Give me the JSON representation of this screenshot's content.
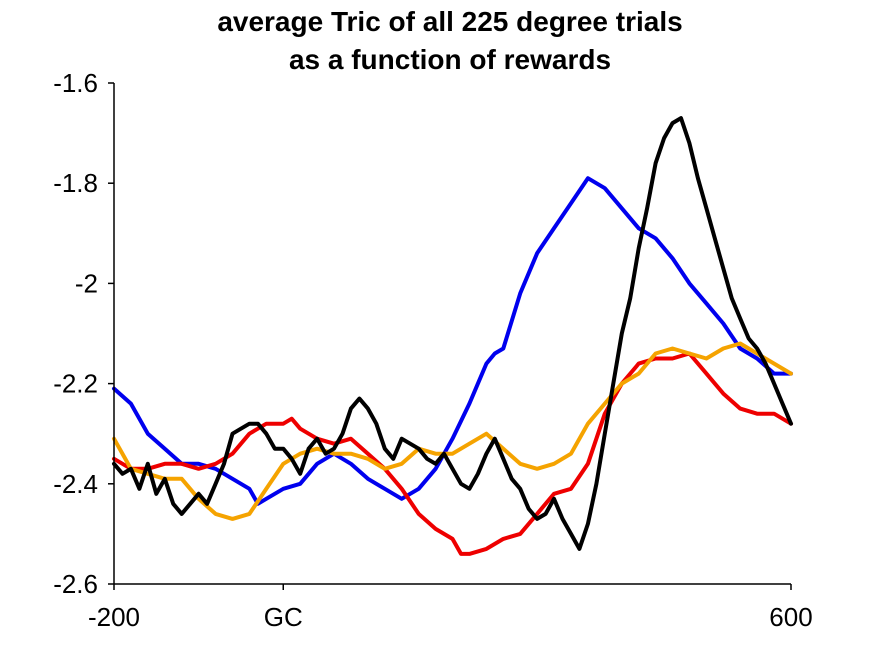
{
  "chart_data": {
    "type": "line",
    "title_lines": [
      "average Tric of all 225 degree trials",
      "as a function of rewards"
    ],
    "xlim": [
      -200,
      600
    ],
    "ylim": [
      -2.6,
      -1.6
    ],
    "x_ticks": [
      {
        "value": -200,
        "label": "-200"
      },
      {
        "value": 0,
        "label": "GC"
      },
      {
        "value": 600,
        "label": "600"
      }
    ],
    "y_ticks": [
      {
        "value": -1.6,
        "label": "-1.6"
      },
      {
        "value": -1.8,
        "label": "-1.8"
      },
      {
        "value": -2.0,
        "label": "-2"
      },
      {
        "value": -2.2,
        "label": "-2.2"
      },
      {
        "value": -2.4,
        "label": "-2.4"
      },
      {
        "value": -2.6,
        "label": "-2.6"
      }
    ],
    "grid": false,
    "series": [
      {
        "color": "#0000ee",
        "x": [
          -200,
          -180,
          -160,
          -140,
          -120,
          -100,
          -80,
          -60,
          -40,
          -30,
          -20,
          -10,
          0,
          20,
          40,
          60,
          80,
          100,
          120,
          140,
          150,
          160,
          180,
          200,
          220,
          240,
          250,
          260,
          280,
          300,
          320,
          340,
          360,
          380,
          400,
          420,
          440,
          460,
          480,
          500,
          520,
          540,
          560,
          580,
          600
        ],
        "y": [
          -2.21,
          -2.24,
          -2.3,
          -2.33,
          -2.36,
          -2.36,
          -2.37,
          -2.39,
          -2.41,
          -2.44,
          -2.43,
          -2.42,
          -2.41,
          -2.4,
          -2.36,
          -2.34,
          -2.36,
          -2.39,
          -2.41,
          -2.43,
          -2.42,
          -2.41,
          -2.37,
          -2.31,
          -2.24,
          -2.16,
          -2.14,
          -2.13,
          -2.02,
          -1.94,
          -1.89,
          -1.84,
          -1.79,
          -1.81,
          -1.85,
          -1.89,
          -1.91,
          -1.95,
          -2.0,
          -2.04,
          -2.08,
          -2.13,
          -2.15,
          -2.18,
          -2.18
        ]
      },
      {
        "color": "#ee0000",
        "x": [
          -200,
          -180,
          -160,
          -140,
          -120,
          -100,
          -80,
          -60,
          -40,
          -20,
          0,
          10,
          20,
          40,
          60,
          80,
          100,
          120,
          140,
          160,
          180,
          200,
          210,
          220,
          240,
          260,
          280,
          300,
          320,
          340,
          360,
          380,
          400,
          420,
          440,
          460,
          480,
          500,
          520,
          540,
          560,
          580,
          600
        ],
        "y": [
          -2.35,
          -2.37,
          -2.37,
          -2.36,
          -2.36,
          -2.37,
          -2.36,
          -2.34,
          -2.3,
          -2.28,
          -2.28,
          -2.27,
          -2.29,
          -2.31,
          -2.32,
          -2.31,
          -2.34,
          -2.37,
          -2.41,
          -2.46,
          -2.49,
          -2.51,
          -2.54,
          -2.54,
          -2.53,
          -2.51,
          -2.5,
          -2.46,
          -2.42,
          -2.41,
          -2.36,
          -2.26,
          -2.2,
          -2.16,
          -2.15,
          -2.15,
          -2.14,
          -2.18,
          -2.22,
          -2.25,
          -2.26,
          -2.26,
          -2.28
        ]
      },
      {
        "color": "#f5a300",
        "x": [
          -200,
          -180,
          -160,
          -140,
          -120,
          -100,
          -80,
          -60,
          -40,
          -20,
          0,
          20,
          40,
          60,
          80,
          100,
          120,
          140,
          160,
          180,
          200,
          220,
          240,
          260,
          280,
          300,
          320,
          340,
          360,
          380,
          400,
          420,
          440,
          460,
          480,
          500,
          520,
          540,
          560,
          580,
          600
        ],
        "y": [
          -2.31,
          -2.37,
          -2.38,
          -2.39,
          -2.39,
          -2.43,
          -2.46,
          -2.47,
          -2.46,
          -2.41,
          -2.36,
          -2.34,
          -2.33,
          -2.34,
          -2.34,
          -2.35,
          -2.37,
          -2.36,
          -2.33,
          -2.34,
          -2.34,
          -2.32,
          -2.3,
          -2.33,
          -2.36,
          -2.37,
          -2.36,
          -2.34,
          -2.28,
          -2.24,
          -2.2,
          -2.18,
          -2.14,
          -2.13,
          -2.14,
          -2.15,
          -2.13,
          -2.12,
          -2.14,
          -2.16,
          -2.18
        ]
      },
      {
        "color": "#000000",
        "x": [
          -200,
          -190,
          -180,
          -170,
          -160,
          -150,
          -140,
          -130,
          -120,
          -110,
          -100,
          -90,
          -80,
          -70,
          -60,
          -50,
          -40,
          -30,
          -20,
          -10,
          0,
          10,
          20,
          30,
          40,
          50,
          60,
          70,
          80,
          90,
          100,
          110,
          120,
          130,
          140,
          150,
          160,
          170,
          180,
          190,
          200,
          210,
          220,
          230,
          240,
          250,
          260,
          270,
          280,
          290,
          300,
          310,
          320,
          330,
          340,
          350,
          360,
          370,
          380,
          390,
          400,
          410,
          420,
          430,
          440,
          450,
          460,
          470,
          480,
          490,
          500,
          510,
          520,
          530,
          540,
          550,
          560,
          570,
          580,
          590,
          600
        ],
        "y": [
          -2.36,
          -2.38,
          -2.37,
          -2.41,
          -2.36,
          -2.42,
          -2.39,
          -2.44,
          -2.46,
          -2.44,
          -2.42,
          -2.44,
          -2.4,
          -2.36,
          -2.3,
          -2.29,
          -2.28,
          -2.28,
          -2.3,
          -2.33,
          -2.33,
          -2.35,
          -2.38,
          -2.33,
          -2.31,
          -2.34,
          -2.33,
          -2.3,
          -2.25,
          -2.23,
          -2.25,
          -2.28,
          -2.33,
          -2.35,
          -2.31,
          -2.32,
          -2.33,
          -2.35,
          -2.36,
          -2.34,
          -2.37,
          -2.4,
          -2.41,
          -2.38,
          -2.34,
          -2.31,
          -2.35,
          -2.39,
          -2.41,
          -2.45,
          -2.47,
          -2.46,
          -2.43,
          -2.47,
          -2.5,
          -2.53,
          -2.48,
          -2.4,
          -2.3,
          -2.2,
          -2.1,
          -2.03,
          -1.93,
          -1.85,
          -1.76,
          -1.71,
          -1.68,
          -1.67,
          -1.72,
          -1.79,
          -1.85,
          -1.91,
          -1.97,
          -2.03,
          -2.07,
          -2.11,
          -2.13,
          -2.16,
          -2.2,
          -2.24,
          -2.28
        ]
      }
    ]
  }
}
